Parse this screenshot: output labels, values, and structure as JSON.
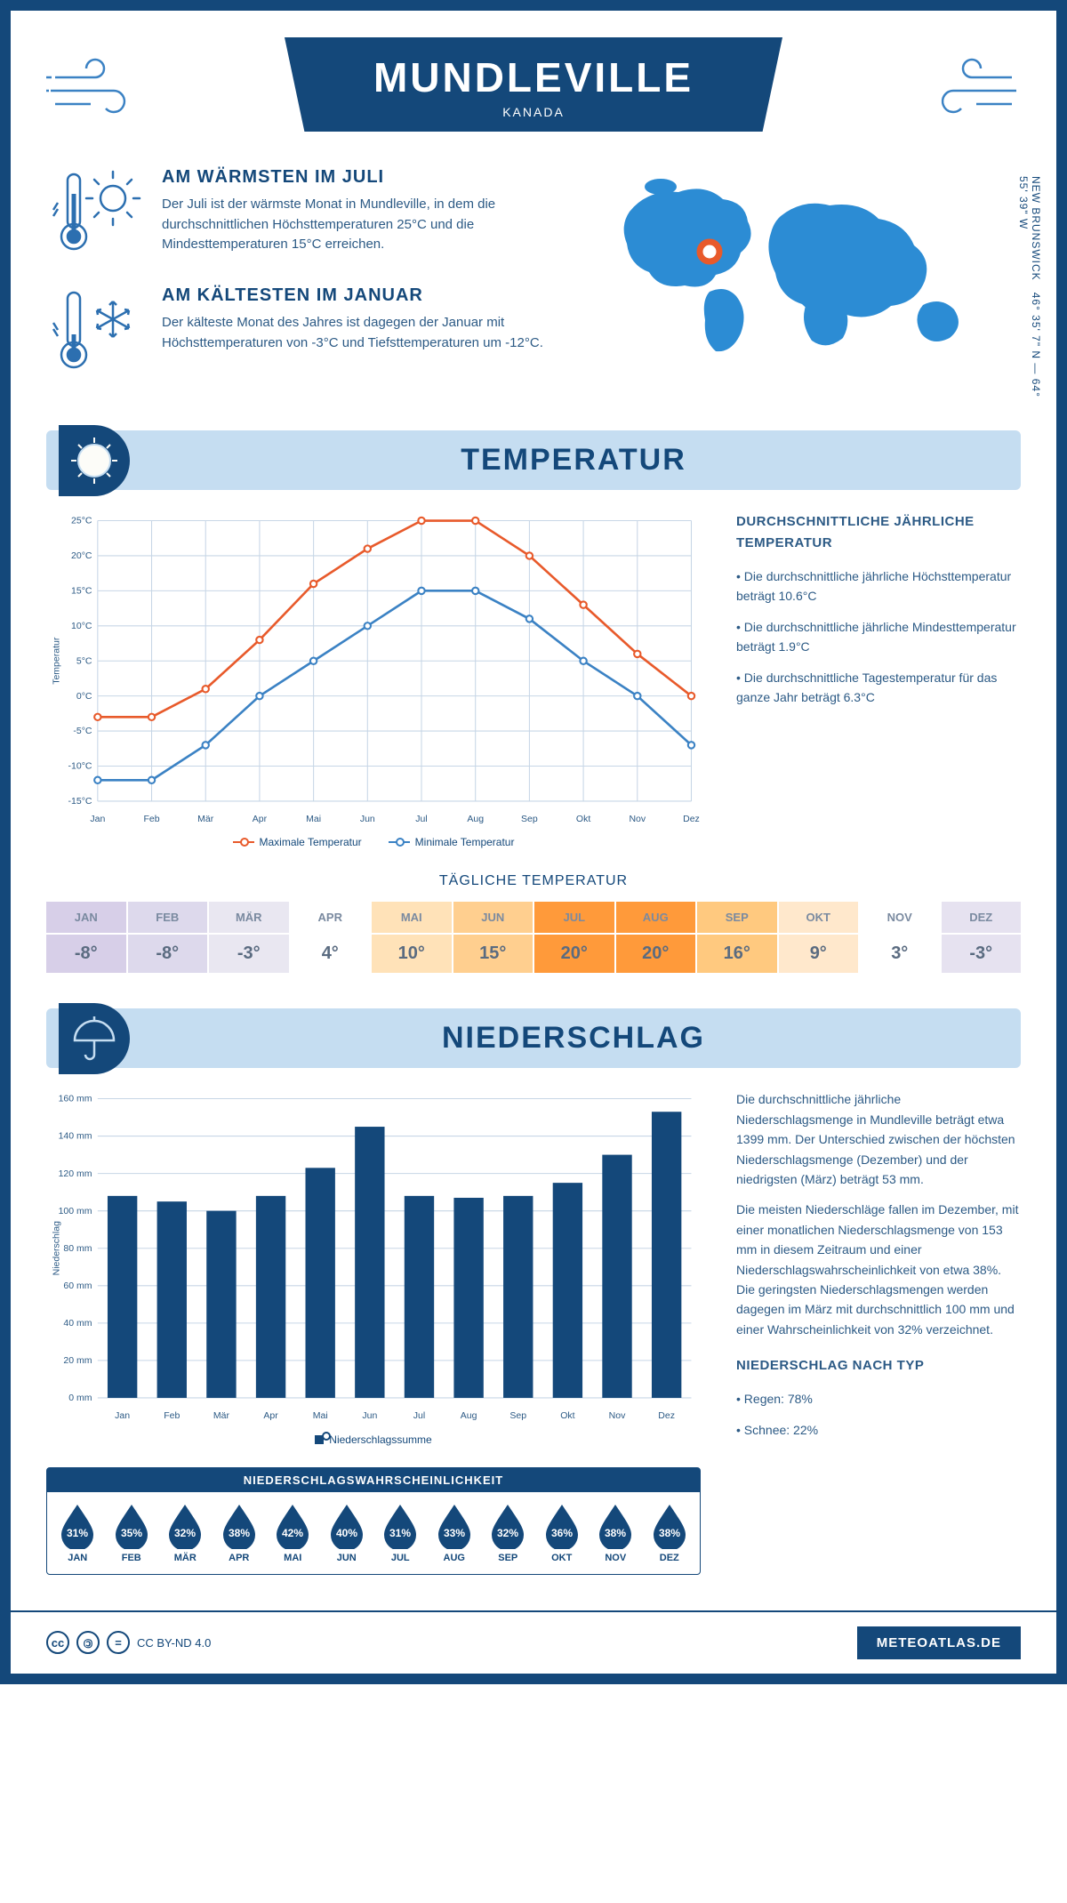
{
  "header": {
    "city": "MUNDLEVILLE",
    "country": "KANADA"
  },
  "coords": {
    "text": "46° 35' 7\" N — 64° 55' 39\" W",
    "region": "NEW BRUNSWICK"
  },
  "facts": {
    "warm": {
      "title": "AM WÄRMSTEN IM JULI",
      "text": "Der Juli ist der wärmste Monat in Mundleville, in dem die durchschnittlichen Höchsttemperaturen 25°C und die Mindesttemperaturen 15°C erreichen."
    },
    "cold": {
      "title": "AM KÄLTESTEN IM JANUAR",
      "text": "Der kälteste Monat des Jahres ist dagegen der Januar mit Höchsttemperaturen von -3°C und Tiefsttemperaturen um -12°C."
    }
  },
  "temp_section": {
    "title": "TEMPERATUR",
    "side": {
      "heading": "DURCHSCHNITTLICHE JÄHRLICHE TEMPERATUR",
      "bullets": [
        "Die durchschnittliche jährliche Höchsttemperatur beträgt 10.6°C",
        "Die durchschnittliche jährliche Mindesttemperatur beträgt 1.9°C",
        "Die durchschnittliche Tagestemperatur für das ganze Jahr beträgt 6.3°C"
      ]
    },
    "chart": {
      "type": "line",
      "months": [
        "Jan",
        "Feb",
        "Mär",
        "Apr",
        "Mai",
        "Jun",
        "Jul",
        "Aug",
        "Sep",
        "Okt",
        "Nov",
        "Dez"
      ],
      "y_label": "Temperatur",
      "ylim": [
        -15,
        25
      ],
      "ytick_step": 5,
      "series": [
        {
          "name": "Maximale Temperatur",
          "color": "#e85a2b",
          "values": [
            -3,
            -3,
            1,
            8,
            16,
            21,
            25,
            25,
            20,
            13,
            6,
            0
          ]
        },
        {
          "name": "Minimale Temperatur",
          "color": "#3b82c4",
          "values": [
            -12,
            -12,
            -7,
            0,
            5,
            10,
            15,
            15,
            11,
            5,
            0,
            -7
          ]
        }
      ],
      "grid_color": "#c7d6e6",
      "background_color": "#ffffff",
      "axis_font_size": 10
    },
    "daily": {
      "title": "TÄGLICHE TEMPERATUR",
      "months": [
        "JAN",
        "FEB",
        "MÄR",
        "APR",
        "MAI",
        "JUN",
        "JUL",
        "AUG",
        "SEP",
        "OKT",
        "NOV",
        "DEZ"
      ],
      "values": [
        "-8°",
        "-8°",
        "-3°",
        "4°",
        "10°",
        "15°",
        "20°",
        "20°",
        "16°",
        "9°",
        "3°",
        "-3°"
      ],
      "colors": [
        "#d7cfe8",
        "#ddd9ec",
        "#e9e7f1",
        "#ffffff",
        "#ffe2b8",
        "#ffcf8f",
        "#ff9a3a",
        "#ff9a3a",
        "#ffc97f",
        "#ffe8cc",
        "#ffffff",
        "#e6e2f0"
      ]
    }
  },
  "precip_section": {
    "title": "NIEDERSCHLAG",
    "side": {
      "para1": "Die durchschnittliche jährliche Niederschlagsmenge in Mundleville beträgt etwa 1399 mm. Der Unterschied zwischen der höchsten Niederschlagsmenge (Dezember) und der niedrigsten (März) beträgt 53 mm.",
      "para2": "Die meisten Niederschläge fallen im Dezember, mit einer monatlichen Niederschlagsmenge von 153 mm in diesem Zeitraum und einer Niederschlagswahrscheinlichkeit von etwa 38%. Die geringsten Niederschlagsmengen werden dagegen im März mit durchschnittlich 100 mm und einer Wahrscheinlichkeit von 32% verzeichnet.",
      "type_heading": "NIEDERSCHLAG NACH TYP",
      "type_bullets": [
        "Regen: 78%",
        "Schnee: 22%"
      ]
    },
    "chart": {
      "type": "bar",
      "months": [
        "Jan",
        "Feb",
        "Mär",
        "Apr",
        "Mai",
        "Jun",
        "Jul",
        "Aug",
        "Sep",
        "Okt",
        "Nov",
        "Dez"
      ],
      "y_label": "Niederschlag",
      "ylim": [
        0,
        160
      ],
      "ytick_step": 20,
      "values": [
        108,
        105,
        100,
        108,
        123,
        145,
        108,
        107,
        108,
        115,
        130,
        153
      ],
      "bar_color": "#14487a",
      "grid_color": "#c7d6e6",
      "legend": "Niederschlagssumme"
    },
    "prob": {
      "title": "NIEDERSCHLAGSWAHRSCHEINLICHKEIT",
      "months": [
        "JAN",
        "FEB",
        "MÄR",
        "APR",
        "MAI",
        "JUN",
        "JUL",
        "AUG",
        "SEP",
        "OKT",
        "NOV",
        "DEZ"
      ],
      "values": [
        "31%",
        "35%",
        "32%",
        "38%",
        "42%",
        "40%",
        "31%",
        "33%",
        "32%",
        "36%",
        "38%",
        "38%"
      ],
      "drop_color": "#14487a"
    }
  },
  "footer": {
    "license": "CC BY-ND 4.0",
    "site": "METEOATLAS.DE"
  }
}
